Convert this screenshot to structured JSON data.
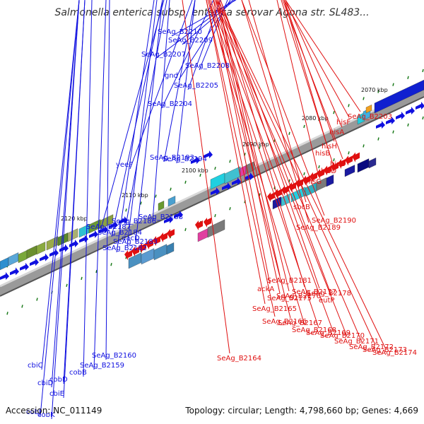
{
  "header": {
    "title": "Salmonella enterica subsp. enterica serovar Agona str. SL483..."
  },
  "footer": {
    "accession": "Accession: NC_011149",
    "summary": "Topology: circular; Length: 4,798,660 bp; Genes: 4,669"
  },
  "colors": {
    "forward_strand": "#1010e0",
    "reverse_strand": "#e01010",
    "backbone": "#8a8a8a",
    "tick_mark": "#1a7a1a"
  },
  "tick_labels": [
    "2070 kbp",
    "2080 kbp",
    "2090 kbp",
    "2100 kbp",
    "2110 kbp",
    "2120 kbp"
  ],
  "forward_genes": [
    "cbiC",
    "cobJ",
    "cbiD",
    "cobK",
    "cobD",
    "cbiE",
    "cobB",
    "SeAg_B2159",
    "SeAg_B2160",
    "SeAg_B2187",
    "SeAg_B2184",
    "SeAg_B2186",
    "SeAg_B2182",
    "dacD",
    "SeAg_B2183",
    "yeeF",
    "SeAg_B2188",
    "SeAg_B2193",
    "SeAg_B2207",
    "SeAg_B2204",
    "SeAg_B2210",
    "gnd",
    "SeAg_B2209",
    "SeAg_B2205",
    "SeAg_B2194",
    "SeAg_B2208"
  ],
  "reverse_genes": [
    "SeAg_B2164",
    "SeAg_B2165",
    "ackA",
    "SeAg_B2181",
    "SeAg_B2175",
    "SeAg_B2166",
    "SeAg_B2176",
    "SeAg_B2167",
    "SeAg_B2189",
    "sbcB",
    "SeAg_B2177",
    "SeAg_B2168",
    "SeAg_B2178",
    "SeAg_B2169",
    "SeAg_B2190",
    "hisG",
    "eutP",
    "SeAg_B2170",
    "hisB",
    "hisD",
    "hisH",
    "hisC",
    "hisA",
    "SeAg_B2171",
    "hisF",
    "SeAg_B2203",
    "SeAg_B2172",
    "SeAg_B2173",
    "SeAg_B2174"
  ]
}
